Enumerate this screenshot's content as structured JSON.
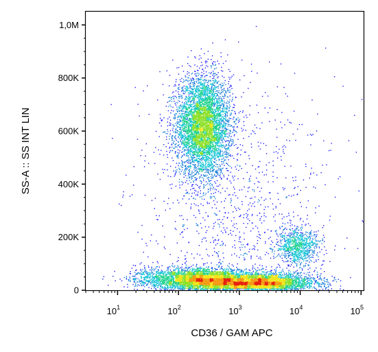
{
  "chart_data": {
    "type": "scatter",
    "title": "",
    "xlabel": "CD36 / GAM APC",
    "ylabel": "SS-A :: SS INT LIN",
    "x_scale": "log",
    "xlim": [
      3,
      110000
    ],
    "ylim": [
      0,
      1050000
    ],
    "x_ticks": [
      {
        "value": 10,
        "base": "10",
        "exp": "1"
      },
      {
        "value": 100,
        "base": "10",
        "exp": "2"
      },
      {
        "value": 1000,
        "base": "10",
        "exp": "3"
      },
      {
        "value": 10000,
        "base": "10",
        "exp": "4"
      },
      {
        "value": 100000,
        "base": "10",
        "exp": "5"
      }
    ],
    "y_ticks": [
      {
        "value": 0,
        "label": "0"
      },
      {
        "value": 200000,
        "label": "200K"
      },
      {
        "value": 400000,
        "label": "400K"
      },
      {
        "value": 600000,
        "label": "600K"
      },
      {
        "value": 800000,
        "label": "800K"
      },
      {
        "value": 1000000,
        "label": "1,0M"
      }
    ],
    "density_colors": [
      "#1a1aff",
      "#1a7fd9",
      "#19c6d6",
      "#23d38f",
      "#8ee02a",
      "#f2e51a",
      "#f59b16",
      "#e8200f"
    ],
    "populations": [
      {
        "center_x": 250,
        "center_y": 620000,
        "spread_log_x": 0.22,
        "spread_y": 95000,
        "count": 5200
      },
      {
        "center_x": 250,
        "center_y": 40000,
        "spread_log_x": 0.35,
        "spread_y": 22000,
        "count": 3200
      },
      {
        "center_x": 2000,
        "center_y": 30000,
        "spread_log_x": 0.45,
        "spread_y": 18000,
        "count": 4200
      },
      {
        "center_x": 9000,
        "center_y": 165000,
        "spread_log_x": 0.18,
        "spread_y": 35000,
        "count": 900
      },
      {
        "center_x": 45,
        "center_y": 45000,
        "spread_log_x": 0.25,
        "spread_y": 20000,
        "count": 500
      },
      {
        "center_x": 800,
        "center_y": 300000,
        "spread_log_x": 0.8,
        "spread_y": 250000,
        "count": 1100
      }
    ]
  }
}
